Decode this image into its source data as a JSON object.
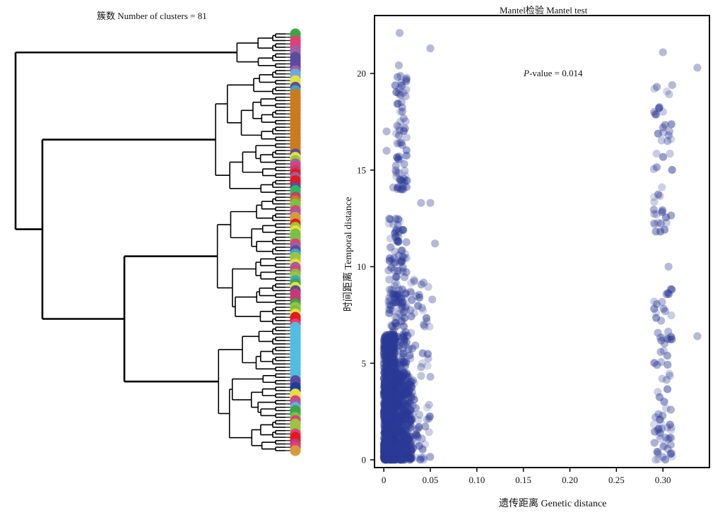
{
  "dendrogram_panel": {
    "title": "簇数 Number of clusters = 81",
    "leaf_colors": [
      "#38a845",
      "#38a845",
      "#e13f7a",
      "#e13f7a",
      "#e13f7a",
      "#9e5fa3",
      "#9e5fa3",
      "#5b4ba0",
      "#5b4ba0",
      "#5b4ba0",
      "#5b4ba0",
      "#9e5fa3",
      "#6fa8dc",
      "#6fa8dc",
      "#e6df3c",
      "#e6df3c",
      "#5b4ba0",
      "#3aa7c9",
      "#cc7a1c",
      "#cc7a1c",
      "#cc7a1c",
      "#cc7a1c",
      "#cc7a1c",
      "#cc7a1c",
      "#cc7a1c",
      "#cc7a1c",
      "#cc7a1c",
      "#cc7a1c",
      "#cc7a1c",
      "#cc7a1c",
      "#cc7a1c",
      "#cc7a1c",
      "#cc7a1c",
      "#cc7a1c",
      "#cc7a1c",
      "#cc7a1c",
      "#5b4ba0",
      "#e6df3c",
      "#9bc53d",
      "#9e5fa3",
      "#e13f7a",
      "#c43b74",
      "#e31a1c",
      "#9e5fa3",
      "#e31a1c",
      "#e31a1c",
      "#5b4ba0",
      "#2db85d",
      "#2db85d",
      "#c43b74",
      "#cc7a1c",
      "#7bc043",
      "#7bc043",
      "#e13f7a",
      "#9e5fa3",
      "#d89b3c",
      "#d89b3c",
      "#e31a1c",
      "#9bc53d",
      "#e6df3c",
      "#7bc043",
      "#7bc043",
      "#7bc043",
      "#e13f7a",
      "#9e5fa3",
      "#5b4ba0",
      "#3aa7c9",
      "#9bc53d",
      "#9bc53d",
      "#e6df3c",
      "#9e5fa3",
      "#e13f7a",
      "#7bc043",
      "#9bc53d",
      "#3aa7c9",
      "#38a845",
      "#e6df3c",
      "#5b4ba0",
      "#c43b74",
      "#c43b74",
      "#c43b74",
      "#38a845",
      "#9bc53d",
      "#7bc043",
      "#e6df3c",
      "#e31a1c",
      "#e31a1c",
      "#e13f7a",
      "#52bde0",
      "#52bde0",
      "#52bde0",
      "#52bde0",
      "#52bde0",
      "#52bde0",
      "#52bde0",
      "#52bde0",
      "#52bde0",
      "#52bde0",
      "#52bde0",
      "#52bde0",
      "#52bde0",
      "#52bde0",
      "#52bde0",
      "#52bde0",
      "#5b4ba0",
      "#5b4ba0",
      "#1f3d99",
      "#1f3d99",
      "#e6df3c",
      "#e6df3c",
      "#e13f7a",
      "#9e5fa3",
      "#6fa8dc",
      "#38a845",
      "#38a845",
      "#7bc043",
      "#e13f7a",
      "#9bc53d",
      "#9bc53d",
      "#9bc53d",
      "#e13f7a",
      "#e31a1c",
      "#e31a1c",
      "#c43b74",
      "#e13f7a",
      "#d89b3c"
    ]
  },
  "chart_data": {
    "type": "scatter",
    "title": "Mantel检验 Mantel test",
    "xlabel": "遗传距离 Genetic distance",
    "ylabel": "时间距离 Temporal distance",
    "xlim": [
      -0.01,
      0.35
    ],
    "ylim": [
      -0.4,
      23.0
    ],
    "xticks": [
      0,
      0.05,
      0.1,
      0.15,
      0.2,
      0.25,
      0.3
    ],
    "xtick_labels": [
      "0",
      "0.05",
      "0.10",
      "0.15",
      "0.20",
      "0.25",
      "0.30"
    ],
    "yticks": [
      0,
      5,
      10,
      15,
      20
    ],
    "ytick_labels": [
      "0",
      "5",
      "10",
      "15",
      "20"
    ],
    "annotation": {
      "label": "P",
      "text": "-value = 0.014"
    },
    "point_color": "#2b3a96",
    "grid": false,
    "clusters": [
      {
        "x_range": [
          0.0,
          0.012
        ],
        "y_range": [
          0.0,
          6.5
        ],
        "n": 900
      },
      {
        "x_range": [
          0.0,
          0.03
        ],
        "y_range": [
          0.0,
          4.5
        ],
        "n": 500
      },
      {
        "x_range": [
          0.005,
          0.025
        ],
        "y_range": [
          0.0,
          12.5
        ],
        "n": 300
      },
      {
        "x_range": [
          0.012,
          0.05
        ],
        "y_range": [
          0.0,
          9.5
        ],
        "n": 120
      },
      {
        "x_range": [
          0.012,
          0.025
        ],
        "y_range": [
          14.0,
          20.5
        ],
        "n": 70
      },
      {
        "x_range": [
          0.29,
          0.31
        ],
        "y_range": [
          0.0,
          9.0
        ],
        "n": 75
      },
      {
        "x_range": [
          0.29,
          0.31
        ],
        "y_range": [
          11.8,
          19.6
        ],
        "n": 45
      }
    ],
    "extra_points": [
      {
        "x": 0.017,
        "y": 22.1
      },
      {
        "x": 0.05,
        "y": 21.3
      },
      {
        "x": 0.3,
        "y": 21.1
      },
      {
        "x": 0.337,
        "y": 20.3
      },
      {
        "x": 0.337,
        "y": 6.4
      },
      {
        "x": 0.306,
        "y": 10.0
      },
      {
        "x": 0.04,
        "y": 13.3
      },
      {
        "x": 0.05,
        "y": 13.3
      },
      {
        "x": 0.055,
        "y": 11.2
      },
      {
        "x": 0.052,
        "y": 8.3
      },
      {
        "x": 0.003,
        "y": 17.0
      },
      {
        "x": 0.003,
        "y": 16.0
      },
      {
        "x": 0.01,
        "y": 14.1
      },
      {
        "x": 0.02,
        "y": 14.0
      },
      {
        "x": 0.006,
        "y": 8.4
      },
      {
        "x": 0.04,
        "y": 4.8
      },
      {
        "x": 0.05,
        "y": 4.3
      },
      {
        "x": 0.041,
        "y": 1.1
      },
      {
        "x": 0.298,
        "y": 7.2
      },
      {
        "x": 0.3,
        "y": 0.15
      },
      {
        "x": 0.307,
        "y": 17.0
      },
      {
        "x": 0.31,
        "y": 19.4
      },
      {
        "x": 0.305,
        "y": 16.5
      },
      {
        "x": 0.292,
        "y": 2.2
      }
    ]
  }
}
